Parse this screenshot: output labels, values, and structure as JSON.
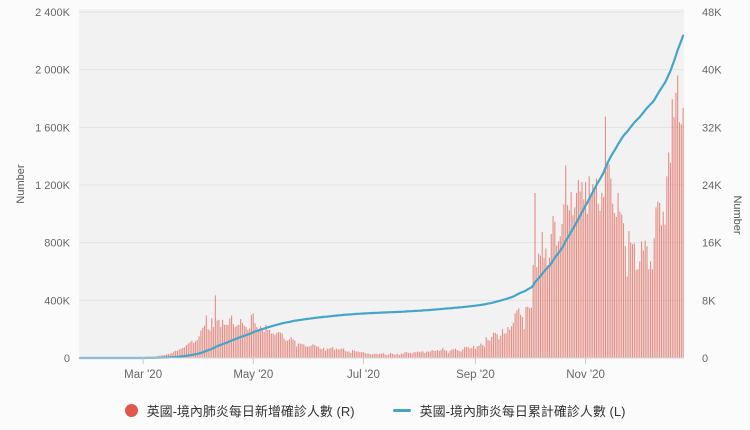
{
  "watermark": {
    "text": "MacroMicro"
  },
  "legend": {
    "items": [
      {
        "label": "英國-境內肺炎每日新增確診人數 (R)",
        "marker": "dot"
      },
      {
        "label": "英國-境內肺炎每日累計確診人數 (L)",
        "marker": "line"
      }
    ]
  },
  "colors": {
    "page_bg": "#fbfbfb",
    "plot_bg": "#f2f2f2",
    "gridline": "#e3e3e3",
    "baseline": "#d8d8d8",
    "tick_mark": "#c9c9c9",
    "tick_label": "#666666",
    "bar_fill": "#e0695c",
    "bar_legend": "#e2574c",
    "line": "#45a5c9",
    "watermark_circle": "#cdeae2",
    "watermark_text": "#dde2e2"
  },
  "chart_data": {
    "type": "combo",
    "frequency": "daily",
    "grid": "horizontal",
    "legend_position": "bottom",
    "values_unit": "thousands of cases (K)",
    "left_axis": {
      "title": "Number",
      "min": 0,
      "max": 2400,
      "tick_labels": [
        "0",
        "400K",
        "800K",
        "1 200K",
        "1 600K",
        "2 000K",
        "2 400K"
      ]
    },
    "right_axis": {
      "title": "Number",
      "min": 0,
      "max": 48,
      "tick_labels": [
        "0",
        "8K",
        "16K",
        "24K",
        "32K",
        "40K",
        "48K"
      ]
    },
    "x_ticks": {
      "labels": [
        "Mar '20",
        "May '20",
        "Jul '20",
        "Sep '20",
        "Nov '20"
      ],
      "day_indices": [
        35,
        96,
        157,
        219,
        280
      ]
    },
    "series": [
      {
        "name": "英國-境內肺炎每日新增確診人數 (R)",
        "type": "bar",
        "axis": "right",
        "color": "#e0695c",
        "opacity": 0.72,
        "values_K": [
          0,
          0,
          0,
          0,
          0,
          0,
          0,
          0,
          0,
          0,
          0,
          0,
          0,
          0,
          0,
          0,
          0,
          0,
          0,
          0,
          0,
          0,
          0,
          0,
          0,
          0,
          0,
          0,
          0,
          0.01,
          0.01,
          0.02,
          0.03,
          0.05,
          0.08,
          0.05,
          0.05,
          0.05,
          0.1,
          0.1,
          0.15,
          0.15,
          0.2,
          0.25,
          0.3,
          0.35,
          0.4,
          0.4,
          0.5,
          0.55,
          0.6,
          0.7,
          0.9,
          1,
          1,
          1.2,
          1.3,
          1.4,
          1.5,
          1.8,
          2,
          2.2,
          2.4,
          2.1,
          2.3,
          2.5,
          3,
          3.8,
          4.2,
          4.5,
          5.9,
          4,
          3.8,
          5.5,
          4.3,
          8.7,
          5.2,
          5.3,
          4.3,
          5.3,
          4.6,
          4.6,
          4.6,
          5.5,
          5.9,
          4.7,
          4.3,
          4.5,
          4.6,
          5.4,
          4.9,
          4.5,
          4.3,
          3.9,
          4.1,
          6,
          6.2,
          4.8,
          4.3,
          3.9,
          4.4,
          4,
          3.6,
          4.6,
          3.9,
          3.9,
          3.4,
          3.4,
          3.2,
          3.5,
          3.6,
          3.5,
          3.4,
          2.7,
          2.4,
          2.4,
          2.6,
          2.9,
          2.6,
          2.4,
          1.6,
          2,
          2,
          1.9,
          1.9,
          1.6,
          1.6,
          1.6,
          1.7,
          1.9,
          1.8,
          1.6,
          1.6,
          1.3,
          1.2,
          1.4,
          1,
          1.3,
          1.3,
          1.4,
          1.5,
          1.1,
          1.3,
          1.2,
          1.2,
          1.3,
          1.3,
          1,
          0.9,
          0.9,
          0.7,
          1.1,
          1,
          0.9,
          0.9,
          0.8,
          0.8,
          0.8,
          0.7,
          0.6,
          0.6,
          0.5,
          0.5,
          0.6,
          0.6,
          0.5,
          0.6,
          0.6,
          0.7,
          0.5,
          0.4,
          0.5,
          0.7,
          0.6,
          0.5,
          0.5,
          0.6,
          0.4,
          0.6,
          0.6,
          0.8,
          0.8,
          0.7,
          0.7,
          0.6,
          0.8,
          0.8,
          0.9,
          0.8,
          0.9,
          0.9,
          0.7,
          0.9,
          0.9,
          0.9,
          1.1,
          1,
          1,
          1.1,
          1,
          1.1,
          1.4,
          1.1,
          1,
          0.7,
          1,
          1.2,
          1.2,
          1.3,
          1.1,
          1,
          0.9,
          1.2,
          1.5,
          1.5,
          1.5,
          1.3,
          1.4,
          1.7,
          1.3,
          1.6,
          1.7,
          2,
          1.8,
          1.6,
          2.9,
          2.5,
          2.4,
          2.9,
          3.5,
          3.5,
          3.3,
          2.6,
          3.1,
          4,
          3.4,
          3.4,
          4.3,
          3.9,
          4.4,
          4.9,
          6.2,
          6.6,
          6.9,
          6,
          5.7,
          4,
          7.1,
          7.1,
          6.9,
          7,
          12.9,
          22.9,
          12.6,
          14.5,
          14.2,
          17.5,
          13.9,
          15.2,
          12.9,
          13.9,
          17.2,
          19.7,
          18.9,
          15.6,
          16.2,
          16.9,
          18.6,
          21.3,
          26.7,
          21.2,
          20.5,
          23,
          19.8,
          20.9,
          22.9,
          24.7,
          23.1,
          24.4,
          22,
          24.4,
          20,
          25.2,
          22.9,
          24.1,
          23.3,
          24.9,
          21.4,
          20.4,
          22.9,
          22.3,
          33.5,
          27.3,
          26.9,
          24.9,
          21.4,
          20.1,
          19.6,
          22.9,
          20.3,
          19.9,
          18.7,
          15.5,
          11.3,
          17.6,
          16,
          15.8,
          15.9,
          12.2,
          12.3,
          13.4,
          16.2,
          14.9,
          16.3,
          15.5,
          12.3,
          13.4,
          12.3,
          16.6,
          20.9,
          21.7,
          21.5,
          18.4,
          20.3,
          18.5,
          25.2,
          28.5,
          27.1,
          35.9,
          33.4,
          36.8,
          39.2,
          32.7,
          32.4,
          34.7
        ]
      },
      {
        "name": "英國-境內肺炎每日累計確診人數 (L)",
        "type": "line",
        "axis": "left",
        "color": "#45a5c9",
        "derivation": "cumulative running sum of the daily bar series",
        "end_value_K": 2236
      }
    ]
  }
}
